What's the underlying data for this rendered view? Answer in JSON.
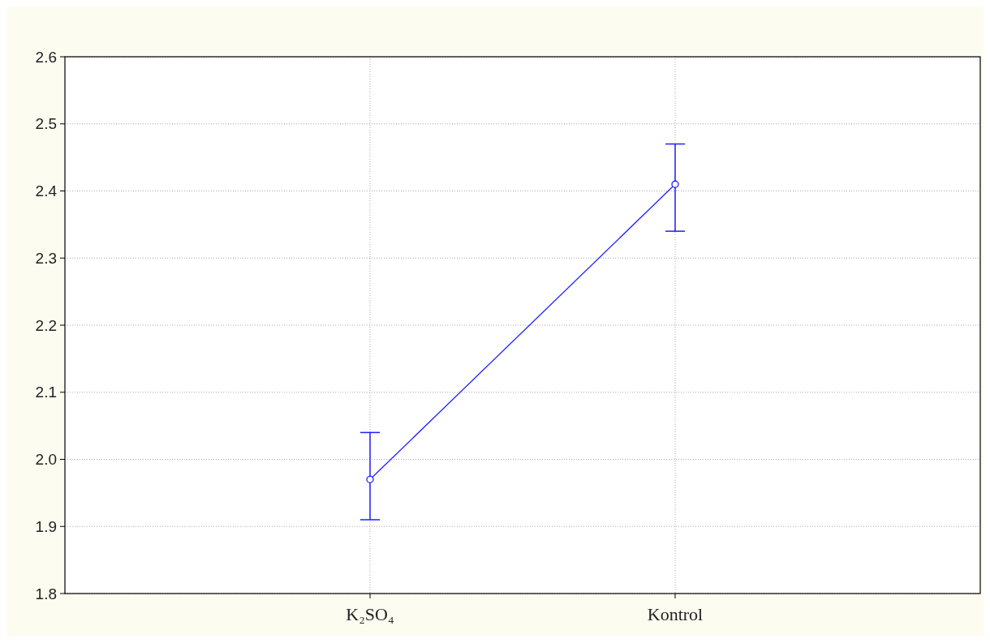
{
  "chart_data": {
    "type": "line",
    "categories": [
      "K₂SO₄",
      "Kontrol"
    ],
    "series": [
      {
        "color": "#1f1fff",
        "values": [
          1.97,
          2.41
        ],
        "errors": [
          [
            1.91,
            2.04
          ],
          [
            2.34,
            2.47
          ]
        ]
      }
    ],
    "ylim": [
      1.8,
      2.6
    ],
    "yticks": [
      {
        "value": 1.8,
        "label": "1.8"
      },
      {
        "value": 1.9,
        "label": "1.9"
      },
      {
        "value": 2.0,
        "label": "2.0"
      },
      {
        "value": 2.1,
        "label": "2.1"
      },
      {
        "value": 2.2,
        "label": "2.2"
      },
      {
        "value": 2.3,
        "label": "2.3"
      },
      {
        "value": 2.4,
        "label": "2.4"
      },
      {
        "value": 2.5,
        "label": "2.5"
      },
      {
        "value": 2.6,
        "label": "2.6"
      }
    ],
    "grid": true,
    "marker": "circle",
    "line_style": "solid"
  }
}
